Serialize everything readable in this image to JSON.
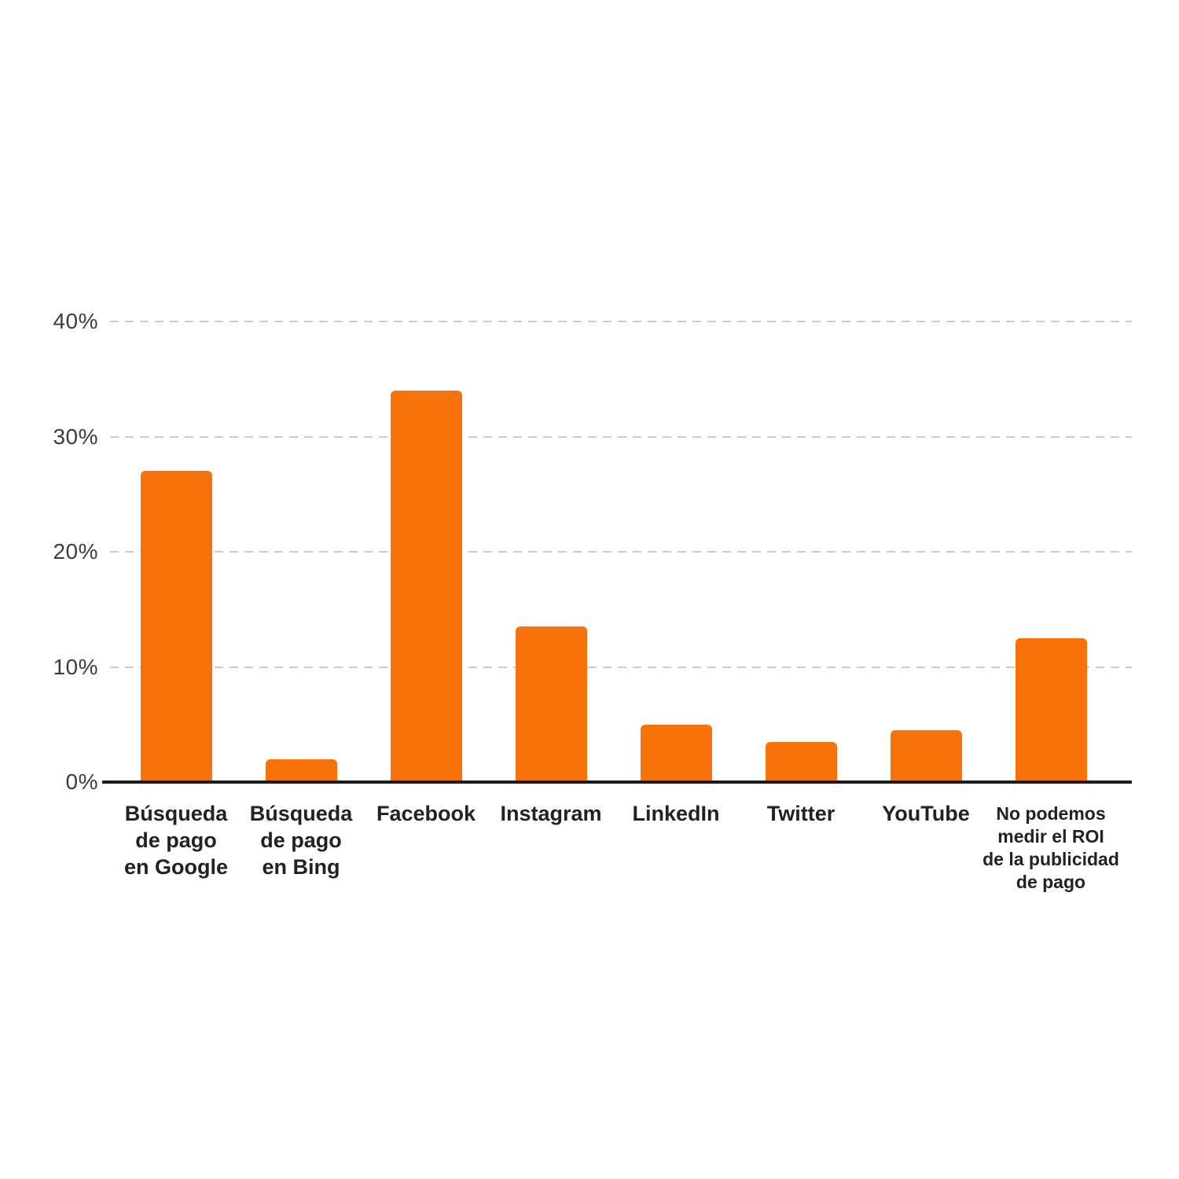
{
  "chart_data": {
    "type": "bar",
    "title": "",
    "xlabel": "",
    "ylabel": "",
    "ylim": [
      0,
      40
    ],
    "grid": "horizontal-dashed",
    "legend_position": "none",
    "bar_color": "#f8720c",
    "axis_color": "#1b1b1b",
    "gridline_color": "#cccccc",
    "ytick_label_color": "#3d3d3d",
    "xtick_label_color": "#222222",
    "yticks": [
      {
        "value": 0,
        "label": "0%"
      },
      {
        "value": 10,
        "label": "10%"
      },
      {
        "value": 20,
        "label": "20%"
      },
      {
        "value": 30,
        "label": "30%"
      },
      {
        "value": 40,
        "label": "40%"
      }
    ],
    "categories": [
      "Búsqueda de pago en Google",
      "Búsqueda de pago en Bing",
      "Facebook",
      "Instagram",
      "LinkedIn",
      "Twitter",
      "YouTube",
      "No podemos medir el ROI de la publicidad de pago"
    ],
    "category_label_lines": [
      [
        "Búsqueda",
        "de pago",
        "en Google"
      ],
      [
        "Búsqueda",
        "de pago",
        "en Bing"
      ],
      [
        "Facebook"
      ],
      [
        "Instagram"
      ],
      [
        "LinkedIn"
      ],
      [
        "Twitter"
      ],
      [
        "YouTube"
      ],
      [
        "No podemos",
        "medir el ROI",
        "de la publicidad",
        "de pago"
      ]
    ],
    "values": [
      27,
      2,
      34,
      13.5,
      5,
      3.5,
      4.5,
      12.5
    ]
  }
}
